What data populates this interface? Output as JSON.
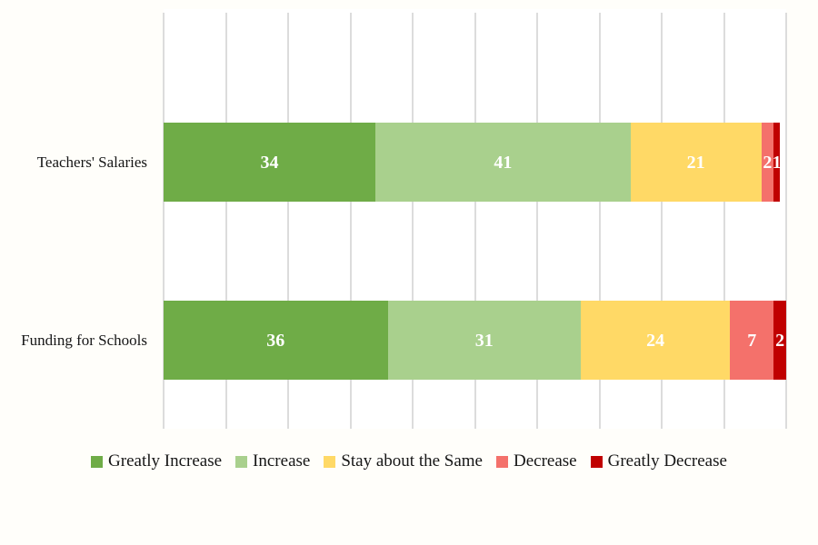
{
  "chart_data": {
    "type": "bar",
    "orientation": "horizontal-stacked",
    "categories": [
      "Teachers' Salaries",
      "Funding for Schools"
    ],
    "series": [
      {
        "name": "Greatly Increase",
        "color": "#6FAC47",
        "values": [
          34,
          36
        ]
      },
      {
        "name": "Increase",
        "color": "#A9D08D",
        "values": [
          41,
          31
        ]
      },
      {
        "name": "Stay about the Same",
        "color": "#FFD966",
        "values": [
          21,
          24
        ]
      },
      {
        "name": "Decrease",
        "color": "#F4716B",
        "values": [
          2,
          7
        ]
      },
      {
        "name": "Greatly Decrease",
        "color": "#C00000",
        "values": [
          1,
          2
        ]
      }
    ],
    "title": "",
    "xlabel": "",
    "ylabel": "",
    "xlim": [
      0,
      100
    ],
    "gridline_step": 10,
    "grid": true,
    "legend_position": "bottom",
    "value_labels_shown": true,
    "colors": {
      "background": "#FFFEFA",
      "plot_background": "#FFFFFF",
      "gridline": "#DCDCDC",
      "text": "#161616",
      "value_label": "#FFFFFF"
    }
  }
}
